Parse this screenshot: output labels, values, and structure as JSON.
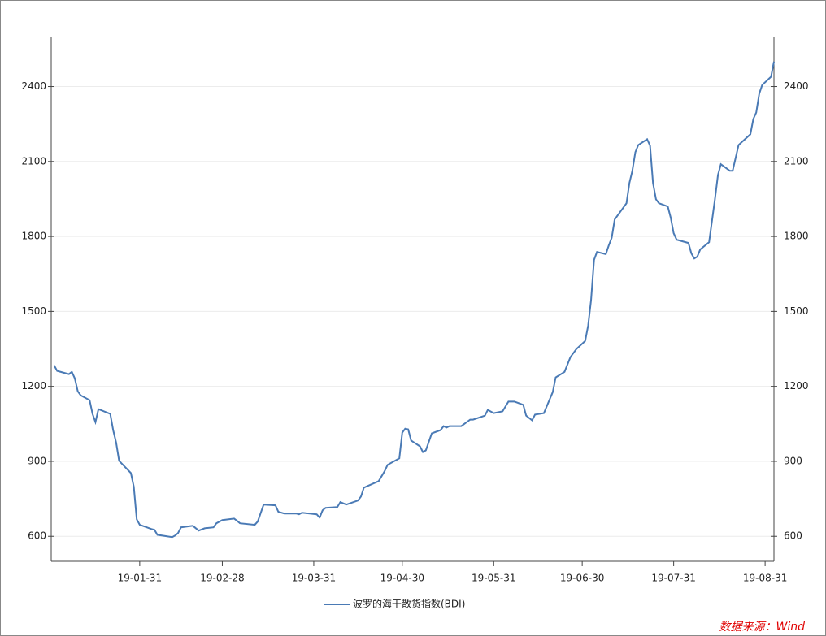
{
  "chart_data": {
    "type": "line",
    "x": [
      "19-01-02",
      "19-01-03",
      "19-01-07",
      "19-01-08",
      "19-01-09",
      "19-01-10",
      "19-01-11",
      "19-01-14",
      "19-01-15",
      "19-01-16",
      "19-01-17",
      "19-01-21",
      "19-01-22",
      "19-01-23",
      "19-01-24",
      "19-01-28",
      "19-01-29",
      "19-01-30",
      "19-01-31",
      "19-02-04",
      "19-02-05",
      "19-02-06",
      "19-02-11",
      "19-02-12",
      "19-02-13",
      "19-02-14",
      "19-02-18",
      "19-02-20",
      "19-02-22",
      "19-02-25",
      "19-02-26",
      "19-02-28",
      "19-03-04",
      "19-03-05",
      "19-03-06",
      "19-03-11",
      "19-03-12",
      "19-03-14",
      "19-03-18",
      "19-03-19",
      "19-03-21",
      "19-03-25",
      "19-03-26",
      "19-03-27",
      "19-04-01",
      "19-04-02",
      "19-04-03",
      "19-04-04",
      "19-04-08",
      "19-04-09",
      "19-04-11",
      "19-04-15",
      "19-04-16",
      "19-04-17",
      "19-04-22",
      "19-04-24",
      "19-04-25",
      "19-04-29",
      "19-04-30",
      "19-05-01",
      "19-05-02",
      "19-05-03",
      "19-05-06",
      "19-05-07",
      "19-05-08",
      "19-05-10",
      "19-05-13",
      "19-05-14",
      "19-05-15",
      "19-05-16",
      "19-05-20",
      "19-05-23",
      "19-05-24",
      "19-05-28",
      "19-05-29",
      "19-05-31",
      "19-06-03",
      "19-06-05",
      "19-06-07",
      "19-06-10",
      "19-06-11",
      "19-06-13",
      "19-06-14",
      "19-06-17",
      "19-06-20",
      "19-06-21",
      "19-06-24",
      "19-06-26",
      "19-06-28",
      "19-07-01",
      "19-07-02",
      "19-07-03",
      "19-07-04",
      "19-07-05",
      "19-07-08",
      "19-07-09",
      "19-07-10",
      "19-07-11",
      "19-07-15",
      "19-07-16",
      "19-07-17",
      "19-07-18",
      "19-07-19",
      "19-07-22",
      "19-07-23",
      "19-07-24",
      "19-07-25",
      "19-07-26",
      "19-07-29",
      "19-07-30",
      "19-07-31",
      "19-08-01",
      "19-08-05",
      "19-08-06",
      "19-08-07",
      "19-08-08",
      "19-08-09",
      "19-08-12",
      "19-08-14",
      "19-08-15",
      "19-08-16",
      "19-08-19",
      "19-08-20",
      "19-08-22",
      "19-08-26",
      "19-08-27",
      "19-08-28",
      "19-08-29",
      "19-08-30",
      "19-09-02",
      "19-09-03"
    ],
    "series": [
      {
        "name": "波罗的海干散货指数(BDI)",
        "color": "#4a7ab5",
        "values": [
          1284,
          1262,
          1249,
          1258,
          1232,
          1180,
          1164,
          1145,
          1090,
          1057,
          1109,
          1090,
          1025,
          976,
          902,
          853,
          798,
          668,
          646,
          629,
          626,
          606,
          597,
          603,
          613,
          636,
          642,
          623,
          632,
          636,
          652,
          665,
          671,
          662,
          652,
          646,
          659,
          727,
          724,
          698,
          691,
          691,
          688,
          694,
          688,
          675,
          704,
          714,
          717,
          737,
          727,
          743,
          759,
          795,
          821,
          860,
          886,
          912,
          1015,
          1031,
          1028,
          983,
          960,
          937,
          944,
          1012,
          1025,
          1041,
          1035,
          1041,
          1041,
          1067,
          1067,
          1083,
          1106,
          1093,
          1100,
          1139,
          1139,
          1126,
          1083,
          1064,
          1087,
          1093,
          1177,
          1236,
          1258,
          1317,
          1349,
          1382,
          1443,
          1544,
          1706,
          1738,
          1729,
          1764,
          1794,
          1868,
          1933,
          2014,
          2063,
          2137,
          2166,
          2189,
          2163,
          2014,
          1949,
          1933,
          1920,
          1875,
          1813,
          1787,
          1774,
          1732,
          1712,
          1719,
          1748,
          1777,
          1949,
          2046,
          2089,
          2063,
          2063,
          2166,
          2209,
          2270,
          2296,
          2371,
          2406,
          2439,
          2500
        ]
      }
    ],
    "xlim": [
      "19-01-01",
      "19-09-03"
    ],
    "xticks": [
      "19-01-31",
      "19-02-28",
      "19-03-31",
      "19-04-30",
      "19-05-31",
      "19-06-30",
      "19-07-31",
      "19-08-31"
    ],
    "ylim": [
      500,
      2600
    ],
    "yticks": [
      600,
      900,
      1200,
      1500,
      1800,
      2100,
      2400
    ],
    "grid": true,
    "source": "数据来源：Wind"
  }
}
